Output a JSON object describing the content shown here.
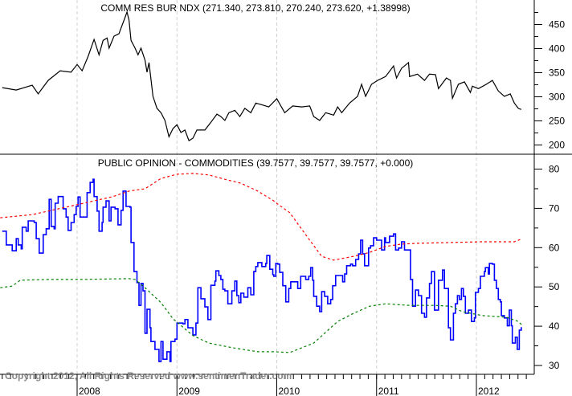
{
  "chart_data": [
    {
      "type": "line",
      "title": "COMM RES BUR NDX (271.340, 273.810, 270.240, 273.620, +1.38998)",
      "ylim": [
        190,
        490
      ],
      "yticks": [
        200,
        250,
        300,
        350,
        400,
        450
      ],
      "xlim": [
        2007.23,
        2012.6
      ],
      "grid": "vertical dashed at year starts",
      "color": "#000000",
      "series": [
        {
          "x": [
            2007.25,
            2007.39,
            2007.55,
            2007.61,
            2007.71,
            2007.83,
            2007.94,
            2008.0,
            2008.05,
            2008.11,
            2008.17,
            2008.22,
            2008.26,
            2008.3,
            2008.32,
            2008.37,
            2008.42,
            2008.43,
            2008.47,
            2008.5,
            2008.52,
            2008.54,
            2008.58,
            2008.61,
            2008.64,
            2008.68,
            2008.7,
            2008.72,
            2008.76,
            2008.8,
            2008.84,
            2008.88,
            2008.92,
            2008.96,
            2009.0,
            2009.04,
            2009.08,
            2009.12,
            2009.16,
            2009.2,
            2009.28,
            2009.34,
            2009.4,
            2009.44,
            2009.48,
            2009.52,
            2009.58,
            2009.63,
            2009.68,
            2009.74,
            2009.79,
            2009.84,
            2009.92,
            2010.0,
            2010.08,
            2010.16,
            2010.25,
            2010.33,
            2010.37,
            2010.43,
            2010.49,
            2010.57,
            2010.61,
            2010.65,
            2010.73,
            2010.81,
            2010.85,
            2010.89,
            2010.95,
            2011.01,
            2011.09,
            2011.17,
            2011.2,
            2011.25,
            2011.32,
            2011.33,
            2011.41,
            2011.48,
            2011.53,
            2011.59,
            2011.62,
            2011.7,
            2011.74,
            2011.76,
            2011.82,
            2011.88,
            2011.94,
            2011.96,
            2012.02,
            2012.1,
            2012.16,
            2012.22,
            2012.28,
            2012.34,
            2012.38,
            2012.42,
            2012.45
          ],
          "y": [
            319,
            314,
            324,
            306,
            334,
            354,
            351,
            367,
            354,
            384,
            419,
            387,
            417,
            422,
            401,
            426,
            431,
            437,
            459,
            476,
            459,
            417,
            401,
            387,
            401,
            376,
            351,
            371,
            301,
            276,
            267,
            251,
            217,
            234,
            242,
            226,
            231,
            209,
            214,
            231,
            231,
            247,
            264,
            259,
            251,
            267,
            272,
            259,
            276,
            267,
            287,
            284,
            279,
            296,
            267,
            281,
            279,
            281,
            259,
            251,
            267,
            262,
            279,
            267,
            287,
            301,
            326,
            301,
            326,
            334,
            342,
            364,
            339,
            359,
            371,
            342,
            347,
            334,
            347,
            346,
            317,
            339,
            334,
            297,
            326,
            331,
            309,
            322,
            317,
            326,
            334,
            312,
            301,
            306,
            287,
            276,
            273.62
          ]
        }
      ]
    },
    {
      "type": "line",
      "title": "PUBLIC OPINION - COMMODITIES (39.7577, 39.7577, 39.7577, +0.000)",
      "ylim": [
        28,
        83
      ],
      "yticks": [
        30,
        40,
        50,
        60,
        70,
        80
      ],
      "xlim": [
        2007.23,
        2012.6
      ],
      "xticks": [
        "2008",
        "2009",
        "2010",
        "2011",
        "2012"
      ],
      "grid": "vertical dashed at year starts",
      "series": [
        {
          "color": "#0000ff",
          "style": "step",
          "x": [
            2007.25,
            2007.29,
            2007.29,
            2007.35,
            2007.39,
            2007.41,
            2007.44,
            2007.45,
            2007.49,
            2007.51,
            2007.57,
            2007.59,
            2007.62,
            2007.66,
            2007.69,
            2007.72,
            2007.74,
            2007.77,
            2007.78,
            2007.81,
            2007.85,
            2007.86,
            2007.89,
            2007.91,
            2007.94,
            2007.97,
            2007.99,
            2008.01,
            2008.03,
            2008.08,
            2008.1,
            2008.13,
            2008.16,
            2008.17,
            2008.2,
            2008.22,
            2008.25,
            2008.26,
            2008.29,
            2008.32,
            2008.34,
            2008.38,
            2008.41,
            2008.44,
            2008.46,
            2008.49,
            2008.53,
            2008.54,
            2008.57,
            2008.6,
            2008.62,
            2008.64,
            2008.66,
            2008.68,
            2008.7,
            2008.73,
            2008.74,
            2008.78,
            2008.82,
            2008.84,
            2008.86,
            2008.9,
            2008.93,
            2008.94,
            2008.98,
            2009.0,
            2009.06,
            2009.08,
            2009.11,
            2009.16,
            2009.19,
            2009.21,
            2009.24,
            2009.28,
            2009.31,
            2009.34,
            2009.38,
            2009.39,
            2009.42,
            2009.44,
            2009.46,
            2009.48,
            2009.51,
            2009.55,
            2009.58,
            2009.6,
            2009.62,
            2009.64,
            2009.67,
            2009.71,
            2009.74,
            2009.77,
            2009.79,
            2009.81,
            2009.85,
            2009.89,
            2009.9,
            2009.93,
            2009.96,
            2009.97,
            2009.99,
            2010.01,
            2010.03,
            2010.06,
            2010.09,
            2010.12,
            2010.14,
            2010.18,
            2010.21,
            2010.24,
            2010.28,
            2010.29,
            2010.32,
            2010.34,
            2010.36,
            2010.37,
            2010.4,
            2010.43,
            2010.45,
            2010.48,
            2010.51,
            2010.54,
            2010.56,
            2010.59,
            2010.63,
            2010.66,
            2010.68,
            2010.7,
            2010.74,
            2010.76,
            2010.79,
            2010.82,
            2010.84,
            2010.86,
            2010.88,
            2010.92,
            2010.94,
            2010.97,
            2011.0,
            2011.02,
            2011.05,
            2011.08,
            2011.09,
            2011.13,
            2011.17,
            2011.19,
            2011.22,
            2011.25,
            2011.28,
            2011.33,
            2011.34,
            2011.36,
            2011.39,
            2011.42,
            2011.45,
            2011.48,
            2011.5,
            2011.53,
            2011.55,
            2011.58,
            2011.58,
            2011.62,
            2011.62,
            2011.66,
            2011.68,
            2011.72,
            2011.74,
            2011.77,
            2011.79,
            2011.81,
            2011.83,
            2011.85,
            2011.87,
            2011.89,
            2011.92,
            2011.95,
            2011.98,
            2011.99,
            2012.02,
            2012.04,
            2012.08,
            2012.09,
            2012.12,
            2012.13,
            2012.16,
            2012.18,
            2012.2,
            2012.22,
            2012.24,
            2012.25,
            2012.28,
            2012.31,
            2012.33,
            2012.35,
            2012.36,
            2012.39,
            2012.41,
            2012.43,
            2012.45
          ],
          "y": [
            64.2,
            64.2,
            60.7,
            59.2,
            62.3,
            60.7,
            59.7,
            65.2,
            64.2,
            66.8,
            66.4,
            62.3,
            58.6,
            63.3,
            64.8,
            72.3,
            65.4,
            64.8,
            71.3,
            73,
            73,
            69.9,
            67.8,
            64.4,
            66.4,
            68.4,
            70.5,
            72.9,
            67.8,
            67.8,
            74,
            76.6,
            77.4,
            73,
            69.3,
            64.2,
            66.4,
            70.3,
            71.9,
            66.8,
            70.3,
            69.9,
            65.8,
            69.5,
            74.4,
            70.5,
            70.3,
            61.3,
            53.9,
            51.1,
            45.3,
            50.9,
            49,
            38.2,
            44.3,
            39.6,
            36.1,
            34.1,
            31,
            36.1,
            31.6,
            33.5,
            31,
            36.1,
            36.7,
            40.8,
            40.6,
            41.7,
            39.6,
            37.8,
            40.8,
            49.8,
            47,
            44.9,
            41.7,
            50.4,
            51.5,
            54.1,
            52.9,
            51.9,
            49.4,
            49,
            45.7,
            49,
            51.5,
            47.8,
            46,
            48.4,
            47.4,
            49.8,
            48,
            53.9,
            55.2,
            56.2,
            55.2,
            56,
            58,
            54.5,
            53.1,
            52.7,
            56,
            55.8,
            53.7,
            50.3,
            46.2,
            49.6,
            51.3,
            51.3,
            49.6,
            52.7,
            52.7,
            51.9,
            52.7,
            54.9,
            51.7,
            47.6,
            45.1,
            43.7,
            48.8,
            47.6,
            45.7,
            46.8,
            50.3,
            52.9,
            52.9,
            51.3,
            53.3,
            55.4,
            55.8,
            55.4,
            57,
            58.4,
            61.9,
            58.4,
            55.4,
            59.9,
            60.5,
            62.5,
            61.9,
            61.9,
            59.4,
            62.5,
            61.3,
            62.9,
            63.5,
            59.4,
            59.9,
            61.5,
            59.4,
            59.4,
            51.9,
            45.1,
            49.2,
            47.8,
            43.3,
            42.3,
            47.2,
            50.9,
            53.9,
            53.3,
            44.1,
            48.6,
            51.7,
            54.3,
            49.6,
            39.6,
            36.5,
            43.3,
            45.7,
            47.8,
            46.8,
            49.6,
            47.6,
            43.3,
            44.1,
            41.2,
            42.1,
            48.6,
            49.6,
            52.7,
            53.9,
            54.9,
            53.3,
            56,
            55.8,
            51.7,
            49.6,
            46.8,
            46.2,
            42.7,
            42.1,
            40.1,
            44.1,
            40.1,
            35.7,
            37.2,
            34.1,
            39,
            39.76
          ]
        },
        {
          "color": "#ff0000",
          "style": "dotted",
          "x": [
            2007.23,
            2007.55,
            2007.71,
            2008.03,
            2008.36,
            2008.52,
            2008.68,
            2008.84,
            2009.0,
            2009.16,
            2009.32,
            2009.48,
            2009.64,
            2009.81,
            2009.97,
            2010.01,
            2010.13,
            2010.29,
            2010.45,
            2010.57,
            2010.77,
            2010.93,
            2011.09,
            2011.25,
            2011.41,
            2011.74,
            2012.06,
            2012.38,
            2012.46
          ],
          "y": [
            67.6,
            68.4,
            69.3,
            71.1,
            73,
            74.4,
            75,
            77.6,
            78.7,
            78.9,
            78.5,
            77.4,
            76.4,
            74.4,
            71.9,
            71.1,
            68.9,
            63.3,
            57.8,
            56.8,
            57.8,
            58.8,
            60.3,
            60.9,
            61.1,
            61.3,
            61.5,
            61.5,
            62.3
          ]
        },
        {
          "color": "#008000",
          "style": "dotted",
          "x": [
            2007.23,
            2007.35,
            2007.43,
            2007.71,
            2008.03,
            2008.52,
            2008.58,
            2008.68,
            2008.84,
            2008.96,
            2009.16,
            2009.32,
            2009.56,
            2009.81,
            2009.97,
            2010.13,
            2010.37,
            2010.61,
            2010.77,
            2010.93,
            2011.09,
            2011.33,
            2011.58,
            2011.74,
            2011.86,
            2012.06,
            2012.3,
            2012.42,
            2012.46
          ],
          "y": [
            49.8,
            50.2,
            51.7,
            51.9,
            51.9,
            52.1,
            51.9,
            49.8,
            46,
            41.9,
            37.6,
            35.7,
            34.5,
            33.5,
            33.5,
            33.3,
            35.7,
            41.2,
            43.3,
            45.1,
            45.7,
            45.3,
            45.3,
            45.1,
            43.7,
            42.7,
            42.3,
            41.2,
            40.2
          ]
        }
      ]
    }
  ],
  "copyright": "Copyright 2012, All Rights Reserved  www.sentimenTrader.com"
}
